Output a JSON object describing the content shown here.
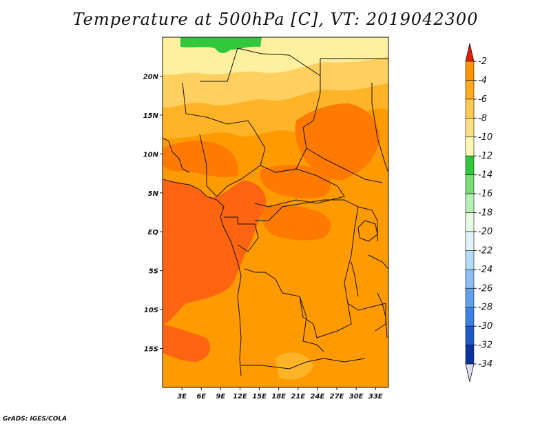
{
  "title": "Temperature at 500hPa [C], VT: 2019042300",
  "footer": "GrADS: IGES/COLA",
  "map": {
    "lon_range": [
      0,
      35
    ],
    "lat_range": [
      -20,
      25
    ],
    "lon_ticks": [
      {
        "value": 3,
        "label": "3E"
      },
      {
        "value": 6,
        "label": "6E"
      },
      {
        "value": 9,
        "label": "9E"
      },
      {
        "value": 12,
        "label": "12E"
      },
      {
        "value": 15,
        "label": "15E"
      },
      {
        "value": 18,
        "label": "18E"
      },
      {
        "value": 21,
        "label": "21E"
      },
      {
        "value": 24,
        "label": "24E"
      },
      {
        "value": 27,
        "label": "27E"
      },
      {
        "value": 30,
        "label": "30E"
      },
      {
        "value": 33,
        "label": "33E"
      }
    ],
    "lat_ticks": [
      {
        "value": 20,
        "label": "20N"
      },
      {
        "value": 15,
        "label": "15N"
      },
      {
        "value": 10,
        "label": "10N"
      },
      {
        "value": 5,
        "label": "5N"
      },
      {
        "value": 0,
        "label": "EQ"
      },
      {
        "value": -5,
        "label": "5S"
      },
      {
        "value": -10,
        "label": "10S"
      },
      {
        "value": -15,
        "label": "15S"
      }
    ]
  },
  "colorbar": {
    "levels": [
      {
        "label": "-2",
        "color": "#ff5a00"
      },
      {
        "label": "-4",
        "color": "#ff9600"
      },
      {
        "label": "-6",
        "color": "#ffaa1e"
      },
      {
        "label": "-8",
        "color": "#ffc850"
      },
      {
        "label": "-10",
        "color": "#ffe082"
      },
      {
        "label": "-12",
        "color": "#fff8b4"
      },
      {
        "label": "-14",
        "color": "#32c83c"
      },
      {
        "label": "-16",
        "color": "#78dc78"
      },
      {
        "label": "-18",
        "color": "#b4f0b4"
      },
      {
        "label": "-20",
        "color": "#e6fae6"
      },
      {
        "label": "-22",
        "color": "#e0f2fc"
      },
      {
        "label": "-24",
        "color": "#b4dcf5"
      },
      {
        "label": "-26",
        "color": "#8cbef0"
      },
      {
        "label": "-28",
        "color": "#64a0eb"
      },
      {
        "label": "-30",
        "color": "#3c82e6"
      },
      {
        "label": "-32",
        "color": "#1e5ac8"
      },
      {
        "label": "-34",
        "color": "#0a32a0"
      }
    ],
    "top_arrow_color": "#e61e00",
    "bottom_arrow_color": "#dcdcf0",
    "dark_bottom_color": "#0a1464"
  },
  "fields": {
    "ocean_warm": "#ff6410",
    "interior": "#ff9a00",
    "band_mid": "#ffb428",
    "band_light": "#ffd060",
    "band_pale": "#fff0a0",
    "green": "#32c83c",
    "patch_dark": "#ff7a00"
  }
}
